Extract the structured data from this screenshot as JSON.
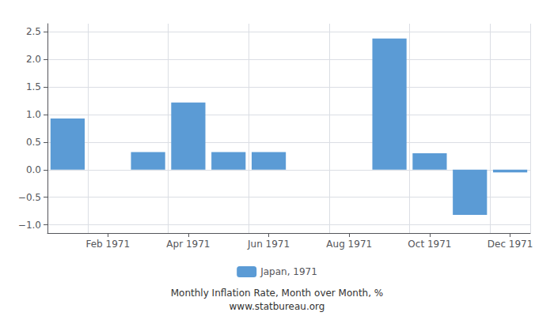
{
  "chart_data": {
    "type": "bar",
    "categories": [
      null,
      "Feb 1971",
      null,
      "Apr 1971",
      null,
      "Jun 1971",
      null,
      "Aug 1971",
      null,
      "Oct 1971",
      null,
      "Dec 1971"
    ],
    "series": [
      {
        "name": "Japan, 1971",
        "color": "#5b9bd5",
        "values": [
          0.93,
          null,
          0.32,
          1.22,
          0.32,
          0.32,
          null,
          null,
          2.38,
          0.3,
          -0.82,
          -0.05
        ]
      }
    ],
    "ylim": [
      -1.15,
      2.65
    ],
    "yticks": [
      {
        "value": -1.0,
        "label": "−1.0"
      },
      {
        "value": -0.5,
        "label": "−0.5"
      },
      {
        "value": 0.0,
        "label": "0.0"
      },
      {
        "value": 0.5,
        "label": "0.5"
      },
      {
        "value": 1.0,
        "label": "1.0"
      },
      {
        "value": 1.5,
        "label": "1.5"
      },
      {
        "value": 2.0,
        "label": "2.0"
      },
      {
        "value": 2.5,
        "label": "2.5"
      }
    ],
    "grid": true,
    "legend": "bottom",
    "annotations": [
      "Monthly Inflation Rate, Month over Month, %",
      "www.statbureau.org"
    ]
  }
}
